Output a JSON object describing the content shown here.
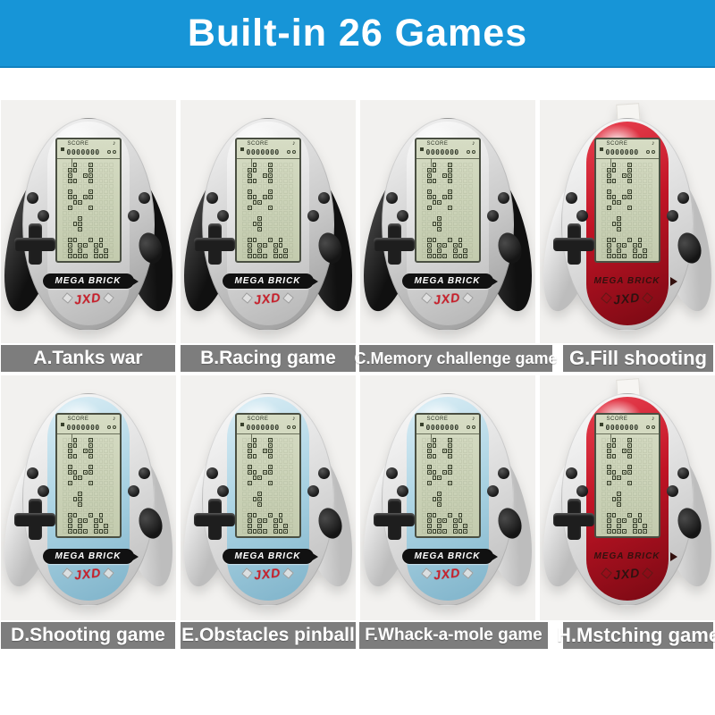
{
  "header": {
    "title": "Built-in 26 Games"
  },
  "colors": {
    "header_bg": "#1795d7",
    "label_bg": "#7d7d7d",
    "photo_bg": "#f2f1ef",
    "lcd_bg": "#ccd3b9",
    "lcd_ink": "#39412d",
    "brand_red": "#c8202c"
  },
  "console_common": {
    "brand": "MEGA BRICK",
    "logo": "JXD",
    "screen": {
      "score_label": "SCORE",
      "score_value": "0000000",
      "sound_icon": "♪"
    },
    "lcd_rows": [
      "..#..#....",
      ".##..#....",
      ".#..##....",
      ".##..#....",
      "..........",
      ".#...#....",
      ".##.##....",
      "..##......",
      ".#...#....",
      "..........",
      "...#......",
      "..##......",
      "...#......",
      "..........",
      ".##..#.#..",
      ".#.##.##..",
      ".#.#..#.#.",
      ".####.###."
    ]
  },
  "grid": [
    {
      "id": "A",
      "label": "A.Tanks war",
      "variant": "silver"
    },
    {
      "id": "B",
      "label": "B.Racing game",
      "variant": "silver"
    },
    {
      "id": "C",
      "label": "C.Memory challenge game",
      "variant": "silver"
    },
    {
      "id": "G",
      "label": "G.Fill shooting",
      "variant": "red"
    },
    {
      "id": "D",
      "label": "D.Shooting game",
      "variant": "blue"
    },
    {
      "id": "E",
      "label": "E.Obstacles pinball",
      "variant": "blue"
    },
    {
      "id": "F",
      "label": "F.Whack-a-mole game",
      "variant": "blue"
    },
    {
      "id": "H",
      "label": "H.Mstching game",
      "variant": "red"
    }
  ]
}
